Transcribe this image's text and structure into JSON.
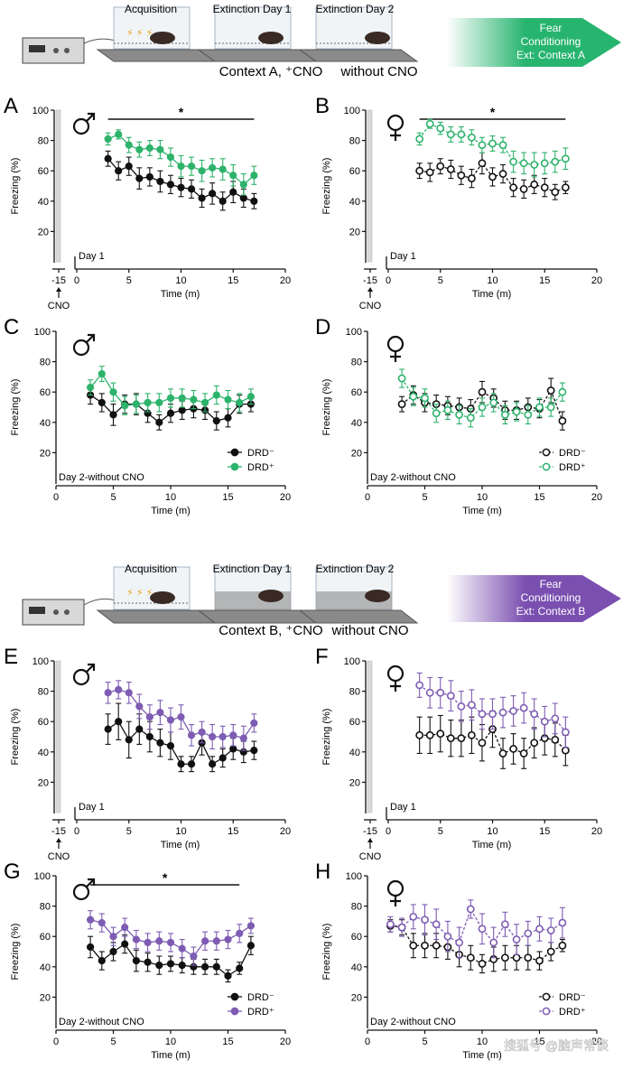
{
  "colors": {
    "black": "#111111",
    "green": "#2db36b",
    "purple": "#7e5cb3",
    "arrow_green": "#27b46f",
    "arrow_purple": "#7a4fb0"
  },
  "icons": {
    "apparatus": "shock-box-icon",
    "chamber": "conditioning-chamber-icon",
    "mouse": "mouse-icon",
    "male": "male-symbol-icon",
    "female": "female-symbol-icon"
  },
  "schematics": [
    {
      "id": "top",
      "chambers": [
        "Acquisition",
        "Extinction Day 1",
        "Extinction Day 2"
      ],
      "context_label": "Context A, ⁺CNO",
      "context_label2": "without CNO",
      "arrow_lines": [
        "Fear",
        "Conditioning",
        "Ext: Context A"
      ]
    },
    {
      "id": "bottom",
      "chambers": [
        "Acquisition",
        "Extinction Day 1",
        "Extinction Day 2"
      ],
      "context_label": "Context B, ⁺CNO",
      "context_label2": "without CNO",
      "arrow_lines": [
        "Fear",
        "Conditioning",
        "Ext: Context B"
      ]
    }
  ],
  "common": {
    "ylabel": "Freezing (%)",
    "xlabel": "Time (m)",
    "cno_label": "CNO",
    "cno_tick": "-15",
    "legend": [
      "DRD⁻",
      "DRD⁺"
    ]
  },
  "chart_data": [
    {
      "panel": "A",
      "sex": "male",
      "type": "line",
      "day_label": "Day 1",
      "has_cno": true,
      "fill": "solid",
      "color2": "green",
      "sig": {
        "label": "*",
        "x": [
          3,
          17
        ]
      },
      "legend": false,
      "xlim": [
        0,
        20
      ],
      "ylim": [
        0,
        100
      ],
      "xticks": [
        0,
        5,
        10,
        15,
        20
      ],
      "yticks": [
        20,
        40,
        60,
        80,
        100
      ],
      "x": [
        3,
        4,
        5,
        6,
        7,
        8,
        9,
        10,
        11,
        12,
        13,
        14,
        15,
        16,
        17
      ],
      "series": [
        {
          "name": "DRD⁻",
          "values": [
            68,
            60,
            63,
            55,
            56,
            53,
            51,
            49,
            48,
            42,
            45,
            40,
            46,
            42,
            40
          ],
          "err": [
            5,
            6,
            6,
            7,
            6,
            7,
            6,
            6,
            6,
            6,
            7,
            6,
            7,
            6,
            5
          ]
        },
        {
          "name": "DRD⁺",
          "values": [
            81,
            84,
            77,
            74,
            75,
            74,
            69,
            63,
            63,
            60,
            62,
            61,
            57,
            51,
            57
          ],
          "err": [
            4,
            3,
            5,
            5,
            5,
            6,
            6,
            7,
            6,
            7,
            6,
            7,
            7,
            7,
            6
          ]
        }
      ]
    },
    {
      "panel": "B",
      "sex": "female",
      "type": "line",
      "day_label": "Day 1",
      "has_cno": true,
      "fill": "open",
      "color2": "green",
      "sig": {
        "label": "*",
        "x": [
          3,
          17
        ]
      },
      "legend": false,
      "xlim": [
        0,
        20
      ],
      "ylim": [
        0,
        100
      ],
      "xticks": [
        0,
        5,
        10,
        15,
        20
      ],
      "yticks": [
        20,
        40,
        60,
        80,
        100
      ],
      "x": [
        3,
        4,
        5,
        6,
        7,
        8,
        9,
        10,
        11,
        12,
        13,
        14,
        15,
        16,
        17
      ],
      "series": [
        {
          "name": "DRD⁻",
          "values": [
            60,
            59,
            63,
            61,
            57,
            55,
            65,
            56,
            58,
            49,
            48,
            51,
            49,
            46,
            49
          ],
          "err": [
            5,
            6,
            5,
            6,
            6,
            6,
            7,
            6,
            6,
            6,
            6,
            6,
            6,
            5,
            4
          ]
        },
        {
          "name": "DRD⁺",
          "values": [
            81,
            91,
            88,
            84,
            84,
            82,
            77,
            78,
            77,
            66,
            65,
            64,
            65,
            66,
            68
          ],
          "err": [
            4,
            3,
            4,
            5,
            5,
            5,
            5,
            5,
            5,
            7,
            7,
            8,
            7,
            7,
            7
          ]
        }
      ]
    },
    {
      "panel": "C",
      "sex": "male",
      "type": "line",
      "day_label": "Day 2-without CNO",
      "has_cno": false,
      "fill": "solid",
      "color2": "green",
      "sig": null,
      "legend": true,
      "xlim": [
        0,
        20
      ],
      "ylim": [
        0,
        100
      ],
      "xticks": [
        0,
        5,
        10,
        15,
        20
      ],
      "yticks": [
        20,
        40,
        60,
        80,
        100
      ],
      "x": [
        3,
        4,
        5,
        6,
        7,
        8,
        9,
        10,
        11,
        12,
        13,
        14,
        15,
        16,
        17
      ],
      "series": [
        {
          "name": "DRD⁻",
          "values": [
            58,
            53,
            45,
            52,
            52,
            46,
            40,
            46,
            48,
            49,
            48,
            41,
            43,
            52,
            52
          ],
          "err": [
            6,
            6,
            7,
            6,
            7,
            6,
            5,
            6,
            6,
            6,
            6,
            6,
            6,
            6,
            5
          ]
        },
        {
          "name": "DRD⁺",
          "values": [
            63,
            72,
            60,
            51,
            52,
            53,
            53,
            56,
            56,
            55,
            53,
            58,
            55,
            53,
            57
          ],
          "err": [
            5,
            5,
            6,
            6,
            6,
            6,
            6,
            6,
            6,
            6,
            6,
            6,
            6,
            6,
            5
          ]
        }
      ]
    },
    {
      "panel": "D",
      "sex": "female",
      "type": "line",
      "day_label": "Day 2-without CNO",
      "has_cno": false,
      "fill": "open",
      "color2": "green",
      "sig": null,
      "legend": true,
      "xlim": [
        0,
        20
      ],
      "ylim": [
        0,
        100
      ],
      "xticks": [
        0,
        5,
        10,
        15,
        20
      ],
      "yticks": [
        20,
        40,
        60,
        80,
        100
      ],
      "x": [
        3,
        4,
        5,
        6,
        7,
        8,
        9,
        10,
        11,
        12,
        13,
        14,
        15,
        16,
        17
      ],
      "series": [
        {
          "name": "DRD⁻",
          "values": [
            52,
            58,
            53,
            52,
            51,
            50,
            49,
            60,
            56,
            48,
            48,
            50,
            49,
            61,
            41
          ],
          "err": [
            5,
            6,
            6,
            6,
            6,
            6,
            6,
            7,
            6,
            6,
            6,
            6,
            6,
            8,
            6
          ]
        },
        {
          "name": "DRD⁺",
          "values": [
            69,
            57,
            56,
            46,
            48,
            45,
            43,
            50,
            53,
            45,
            47,
            45,
            50,
            50,
            60
          ],
          "err": [
            6,
            6,
            6,
            6,
            6,
            6,
            6,
            6,
            6,
            6,
            6,
            6,
            6,
            6,
            6
          ]
        }
      ]
    },
    {
      "panel": "E",
      "sex": "male",
      "type": "line",
      "day_label": "Day 1",
      "has_cno": true,
      "fill": "solid",
      "color2": "purple",
      "sig": null,
      "legend": false,
      "xlim": [
        0,
        20
      ],
      "ylim": [
        0,
        100
      ],
      "xticks": [
        0,
        5,
        10,
        15,
        20
      ],
      "yticks": [
        20,
        40,
        60,
        80,
        100
      ],
      "x": [
        3,
        4,
        5,
        6,
        7,
        8,
        9,
        10,
        11,
        12,
        13,
        14,
        15,
        16,
        17
      ],
      "series": [
        {
          "name": "DRD⁻",
          "values": [
            55,
            60,
            48,
            55,
            50,
            46,
            44,
            32,
            32,
            46,
            32,
            36,
            42,
            40,
            41
          ],
          "err": [
            10,
            12,
            12,
            10,
            10,
            9,
            9,
            5,
            5,
            8,
            5,
            6,
            7,
            7,
            6
          ]
        },
        {
          "name": "DRD⁺",
          "values": [
            79,
            81,
            79,
            70,
            63,
            66,
            61,
            63,
            51,
            53,
            50,
            50,
            51,
            49,
            59
          ],
          "err": [
            7,
            6,
            7,
            8,
            8,
            8,
            8,
            8,
            7,
            7,
            8,
            7,
            7,
            8,
            6
          ]
        }
      ]
    },
    {
      "panel": "F",
      "sex": "female",
      "type": "line",
      "day_label": "Day 1",
      "has_cno": true,
      "fill": "open",
      "color2": "purple",
      "sig": null,
      "legend": false,
      "xlim": [
        0,
        20
      ],
      "ylim": [
        0,
        100
      ],
      "xticks": [
        0,
        5,
        10,
        15,
        20
      ],
      "yticks": [
        20,
        40,
        60,
        80,
        100
      ],
      "x": [
        3,
        4,
        5,
        6,
        7,
        8,
        9,
        10,
        11,
        12,
        13,
        14,
        15,
        16,
        17
      ],
      "series": [
        {
          "name": "DRD⁻",
          "values": [
            51,
            51,
            52,
            49,
            49,
            51,
            46,
            55,
            39,
            42,
            39,
            46,
            49,
            48,
            41
          ],
          "err": [
            12,
            12,
            12,
            12,
            12,
            12,
            12,
            12,
            10,
            10,
            10,
            10,
            11,
            11,
            10
          ]
        },
        {
          "name": "DRD⁺",
          "values": [
            84,
            79,
            79,
            77,
            70,
            71,
            65,
            65,
            66,
            67,
            69,
            65,
            60,
            62,
            53
          ],
          "err": [
            8,
            10,
            10,
            10,
            10,
            10,
            10,
            10,
            10,
            10,
            10,
            10,
            10,
            10,
            10
          ]
        }
      ]
    },
    {
      "panel": "G",
      "sex": "male",
      "type": "line",
      "day_label": "Day 2-without CNO",
      "has_cno": false,
      "fill": "solid",
      "color2": "purple",
      "sig": {
        "label": "*",
        "x": [
          3,
          16
        ]
      },
      "legend": true,
      "xlim": [
        0,
        20
      ],
      "ylim": [
        0,
        100
      ],
      "xticks": [
        0,
        5,
        10,
        15,
        20
      ],
      "yticks": [
        20,
        40,
        60,
        80,
        100
      ],
      "x": [
        3,
        4,
        5,
        6,
        7,
        8,
        9,
        10,
        11,
        12,
        13,
        14,
        15,
        16,
        17
      ],
      "series": [
        {
          "name": "DRD⁻",
          "values": [
            53,
            44,
            50,
            55,
            44,
            43,
            41,
            42,
            41,
            40,
            40,
            40,
            34,
            39,
            54
          ],
          "err": [
            7,
            6,
            6,
            6,
            7,
            6,
            6,
            5,
            5,
            5,
            5,
            5,
            4,
            4,
            6
          ]
        },
        {
          "name": "DRD⁺",
          "values": [
            71,
            69,
            60,
            66,
            58,
            56,
            57,
            56,
            52,
            47,
            57,
            57,
            58,
            62,
            67
          ],
          "err": [
            6,
            6,
            6,
            6,
            6,
            6,
            6,
            6,
            6,
            6,
            6,
            6,
            6,
            6,
            5
          ]
        }
      ]
    },
    {
      "panel": "H",
      "sex": "female",
      "type": "line",
      "day_label": "Day 2-without CNO",
      "has_cno": false,
      "fill": "open",
      "color2": "purple",
      "sig": null,
      "legend": true,
      "xlim": [
        0,
        20
      ],
      "ylim": [
        0,
        100
      ],
      "xticks": [
        0,
        5,
        10,
        15,
        20
      ],
      "yticks": [
        20,
        40,
        60,
        80,
        100
      ],
      "x": [
        2,
        3,
        4,
        5,
        6,
        7,
        8,
        9,
        10,
        11,
        12,
        13,
        14,
        15,
        16,
        17
      ],
      "series": [
        {
          "name": "DRD⁻",
          "values": [
            67,
            66,
            54,
            54,
            54,
            53,
            48,
            46,
            42,
            45,
            46,
            46,
            46,
            44,
            50,
            54
          ],
          "err": [
            4,
            5,
            8,
            8,
            8,
            8,
            8,
            8,
            6,
            8,
            8,
            8,
            8,
            6,
            6,
            4
          ]
        },
        {
          "name": "DRD⁺",
          "values": [
            68,
            66,
            73,
            71,
            68,
            60,
            56,
            78,
            65,
            56,
            68,
            58,
            62,
            65,
            64,
            69
          ],
          "err": [
            5,
            6,
            8,
            10,
            10,
            10,
            10,
            6,
            10,
            10,
            8,
            10,
            8,
            8,
            8,
            10
          ]
        }
      ]
    }
  ],
  "watermark": "搜狐号 @脑声常谈"
}
